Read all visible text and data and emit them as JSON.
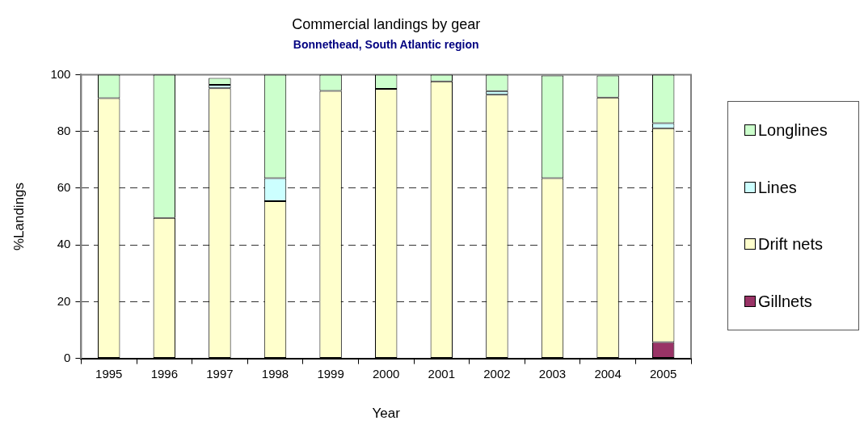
{
  "chart_data": {
    "type": "bar",
    "title": "Commercial landings by gear",
    "subtitle": "Bonnethead, South Atlantic region",
    "xlabel": "Year",
    "ylabel": "%Landings",
    "categories": [
      "1995",
      "1996",
      "1997",
      "1998",
      "1999",
      "2000",
      "2001",
      "2002",
      "2003",
      "2004",
      "2005"
    ],
    "series": [
      {
        "name": "Gillnets",
        "color": "#993366",
        "values": [
          null,
          null,
          null,
          null,
          null,
          null,
          null,
          null,
          null,
          null,
          5.7
        ]
      },
      {
        "name": "Drift nets",
        "color": "#ffffcc",
        "values": [
          91.7,
          49.5,
          95.2,
          55.4,
          94.3,
          95.0,
          97.6,
          92.9,
          63.5,
          91.9,
          75.4
        ]
      },
      {
        "name": "Lines",
        "color": "#ccffff",
        "values": [
          null,
          null,
          1.2,
          8.1,
          null,
          null,
          null,
          1.3,
          null,
          null,
          1.8
        ]
      },
      {
        "name": "Longlines",
        "color": "#ccffcc",
        "values": [
          8.3,
          50.5,
          2.4,
          36.5,
          5.7,
          5.0,
          2.4,
          5.8,
          36.2,
          7.8,
          17.1
        ]
      }
    ],
    "stacked": true,
    "ylim": [
      0,
      100
    ],
    "yticks": [
      0,
      20,
      40,
      60,
      80,
      100
    ],
    "grid": "y",
    "legend": "right"
  }
}
